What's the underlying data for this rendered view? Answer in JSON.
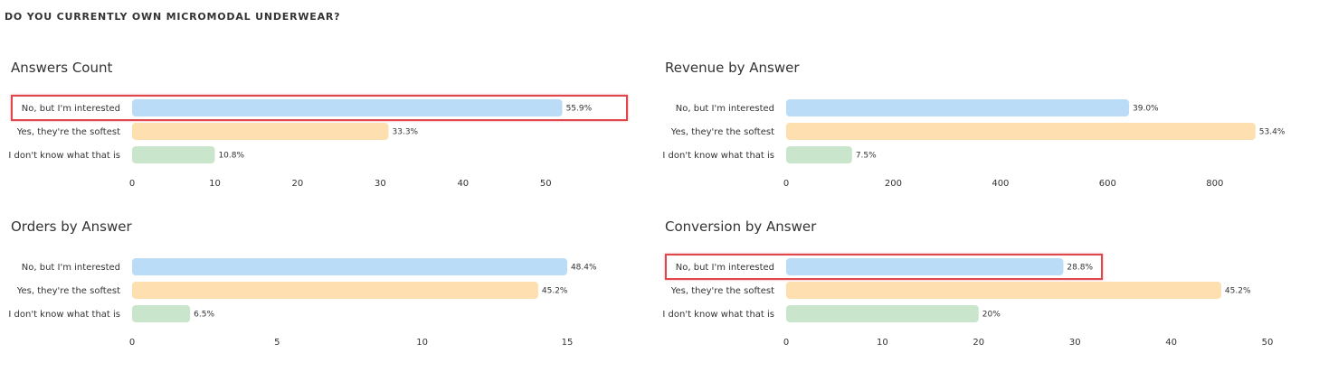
{
  "question": "DO YOU CURRENTLY OWN MICROMODAL UNDERWEAR?",
  "colors": {
    "interested": "#bbdcf7",
    "softest": "#fddfb0",
    "unknown": "#c9e6cc",
    "highlight": "#e0474c"
  },
  "chart_data": [
    {
      "type": "bar",
      "orientation": "horizontal",
      "title": "Answers Count",
      "categories": [
        "No, but I'm interested",
        "Yes, they're the softest",
        "I don't know what that is"
      ],
      "values": [
        52,
        31,
        10
      ],
      "value_labels": [
        "55.9%",
        "33.3%",
        "10.8%"
      ],
      "xlim": [
        0,
        55
      ],
      "ticks": [
        0,
        10,
        20,
        30,
        40,
        50
      ],
      "grid": false,
      "highlighted_category": 0
    },
    {
      "type": "bar",
      "orientation": "horizontal",
      "title": "Revenue by Answer",
      "categories": [
        "No, but I'm interested",
        "Yes, they're the softest",
        "I don't know what that is"
      ],
      "values": [
        640,
        876,
        123
      ],
      "value_labels": [
        "39.0%",
        "53.4%",
        "7.5%"
      ],
      "xlim": [
        0,
        900
      ],
      "ticks": [
        0,
        200,
        400,
        600,
        800
      ],
      "grid": false,
      "highlighted_category": null
    },
    {
      "type": "bar",
      "orientation": "horizontal",
      "title": "Orders by Answer",
      "categories": [
        "No, but I'm interested",
        "Yes, they're the softest",
        "I don't know what that is"
      ],
      "values": [
        15,
        14,
        2
      ],
      "value_labels": [
        "48.4%",
        "45.2%",
        "6.5%"
      ],
      "xlim": [
        0,
        15.5
      ],
      "ticks": [
        0,
        5,
        10,
        15
      ],
      "grid": false,
      "highlighted_category": null
    },
    {
      "type": "bar",
      "orientation": "horizontal",
      "title": "Conversion by Answer",
      "categories": [
        "No, but I'm interested",
        "Yes, they're the softest",
        "I don't know what that is"
      ],
      "values": [
        28.8,
        45.2,
        20
      ],
      "value_labels": [
        "28.8%",
        "45.2%",
        "20%"
      ],
      "xlim": [
        0,
        50
      ],
      "ticks": [
        0,
        10,
        20,
        30,
        40,
        50
      ],
      "grid": false,
      "highlighted_category": 0
    }
  ]
}
